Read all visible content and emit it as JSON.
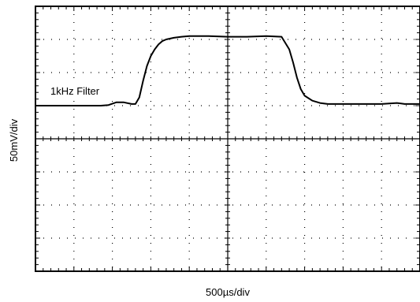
{
  "chart_data": {
    "type": "line",
    "ylabel": "50mV/div",
    "xlabel": "500µs/div",
    "annotation": "1kHz Filter",
    "grid": true,
    "x_divisions": 10,
    "y_divisions": 8,
    "xlim": [
      0,
      10
    ],
    "ylim": [
      -4,
      4
    ],
    "series": [
      {
        "x": [
          0,
          1.7,
          1.9,
          2.1,
          2.3,
          2.5,
          2.6,
          2.7,
          2.8,
          2.9,
          3.0,
          3.1,
          3.2,
          3.3,
          3.4,
          3.6,
          3.8,
          4.0,
          4.5,
          5.0,
          5.5,
          6.0,
          6.4,
          6.6,
          6.7,
          6.8,
          6.9,
          7.0,
          7.2,
          7.4,
          7.6,
          7.8,
          8.0,
          8.5,
          9.0,
          9.4,
          9.6,
          10.0
        ],
        "y": [
          1.0,
          1.0,
          1.02,
          1.1,
          1.1,
          1.05,
          1.05,
          1.25,
          1.75,
          2.2,
          2.5,
          2.7,
          2.85,
          2.95,
          3.0,
          3.05,
          3.08,
          3.1,
          3.1,
          3.08,
          3.08,
          3.1,
          3.08,
          2.7,
          2.3,
          1.85,
          1.5,
          1.3,
          1.15,
          1.08,
          1.05,
          1.05,
          1.05,
          1.05,
          1.05,
          1.08,
          1.05,
          1.05
        ]
      }
    ]
  }
}
